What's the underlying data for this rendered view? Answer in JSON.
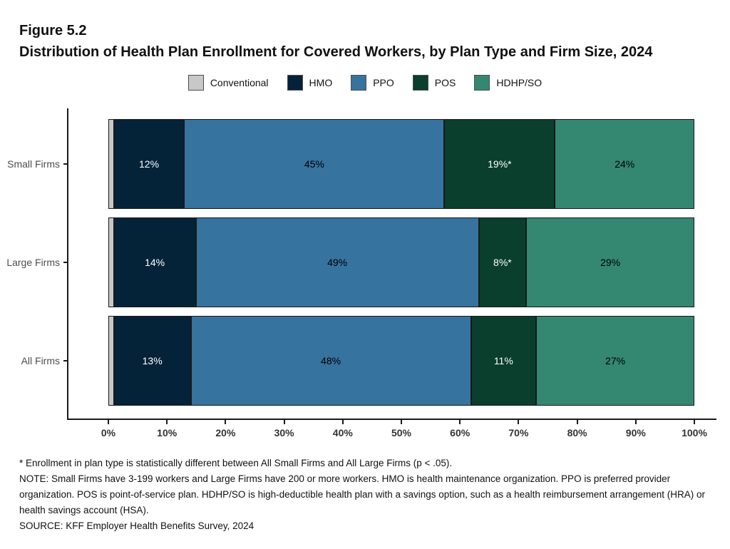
{
  "header": {
    "figure_label": "Figure 5.2",
    "title": "Distribution of Health Plan Enrollment for Covered Workers, by Plan Type and Firm Size, 2024"
  },
  "chart_data": {
    "type": "bar",
    "orientation": "horizontal",
    "stacked": true,
    "title": "Distribution of Health Plan Enrollment for Covered Workers, by Plan Type and Firm Size, 2024",
    "categories": [
      "Small Firms",
      "Large Firms",
      "All Firms"
    ],
    "series": [
      {
        "name": "Conventional",
        "color": "#c8c8c8",
        "label_color": "#000000",
        "values": [
          0.7,
          0.7,
          0.7
        ],
        "labels": [
          "",
          "",
          ""
        ]
      },
      {
        "name": "HMO",
        "color": "#052338",
        "label_color": "#ffffff",
        "values": [
          12,
          14,
          13
        ],
        "labels": [
          "12%",
          "14%",
          "13%"
        ]
      },
      {
        "name": "PPO",
        "color": "#36739f",
        "label_color": "#000000",
        "values": [
          45,
          49,
          48
        ],
        "labels": [
          "45%",
          "49%",
          "48%"
        ]
      },
      {
        "name": "POS",
        "color": "#0a3e2d",
        "label_color": "#ffffff",
        "values": [
          19,
          8,
          11
        ],
        "labels": [
          "19%*",
          "8%*",
          "11%"
        ]
      },
      {
        "name": "HDHP/SO",
        "color": "#348771",
        "label_color": "#000000",
        "values": [
          24,
          29,
          27
        ],
        "labels": [
          "24%",
          "29%",
          "27%"
        ]
      }
    ],
    "xlabel": "",
    "ylabel": "",
    "xlim": [
      0,
      100
    ],
    "x_ticks": [
      "0%",
      "10%",
      "20%",
      "30%",
      "40%",
      "50%",
      "60%",
      "70%",
      "80%",
      "90%",
      "100%"
    ],
    "grid": false,
    "legend_position": "top"
  },
  "axis_colors": {
    "axis_line": "#1a1a1a",
    "y_label_text": "#4d4d4d",
    "x_tick_text": "#333333"
  },
  "footnotes": {
    "significance": "* Enrollment in plan type is statistically different between All Small Firms and All Large Firms (p < .05).",
    "note": "NOTE: Small Firms have 3-199 workers and Large Firms have 200 or more workers. HMO is health maintenance organization. PPO is preferred provider organization. POS is point-of-service plan. HDHP/SO is high-deductible health plan with a savings option, such as a health reimbursement arrangement (HRA) or health savings account (HSA).",
    "source": "SOURCE: KFF Employer Health Benefits Survey, 2024"
  }
}
